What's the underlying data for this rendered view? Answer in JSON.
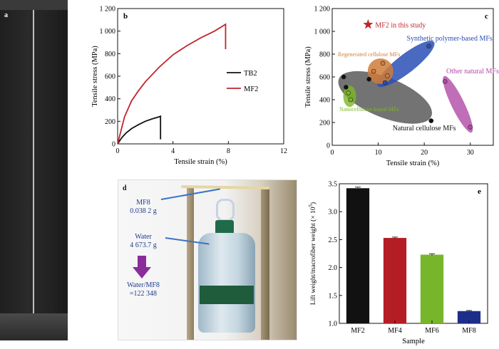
{
  "panel_a": {
    "letter": "a"
  },
  "panel_d": {
    "letter": "d",
    "mf8_name": "MF8",
    "mf8_mass": "0.038 2 g",
    "water_name": "Water",
    "water_mass": "4 673.7  g",
    "ratio_line1": "Water/MF8",
    "ratio_line2": "=122 348"
  },
  "colors": {
    "red": "#c0252b",
    "black": "#111111",
    "blue": "#2a4fb5",
    "green": "#7cb726",
    "orange": "#cf7d3a",
    "purple": "#b24aa6",
    "gray": "#444444",
    "navy": "#1d2e8a"
  },
  "chart_data": [
    {
      "panel": "b",
      "type": "line",
      "xlabel": "Tensile strain (%)",
      "ylabel": "Tensile stress (MPa)",
      "xlim": [
        0,
        12
      ],
      "ylim": [
        0,
        1200
      ],
      "xticks": [
        "0",
        "4",
        "8",
        "12"
      ],
      "yticks": [
        "0",
        "200",
        "400",
        "600",
        "800",
        "1 000",
        "1 200"
      ],
      "legend": "right",
      "series": [
        {
          "name": "TB2",
          "color": "#111111",
          "x": [
            0,
            0.3,
            0.6,
            1.0,
            1.5,
            2.0,
            2.5,
            3.0,
            3.1,
            3.1
          ],
          "y": [
            0,
            55,
            95,
            135,
            170,
            200,
            222,
            240,
            245,
            40
          ]
        },
        {
          "name": "MF2",
          "color": "#c0252b",
          "x": [
            0,
            0.5,
            1.0,
            1.5,
            2.0,
            3.0,
            4.0,
            5.0,
            6.0,
            7.0,
            7.8,
            7.8
          ],
          "y": [
            0,
            240,
            380,
            470,
            550,
            680,
            790,
            870,
            940,
            1000,
            1060,
            840
          ]
        }
      ]
    },
    {
      "panel": "c",
      "type": "scatter",
      "xlabel": "Tensile strain (%)",
      "ylabel": "Tensile stress (MPa)",
      "xlim": [
        0,
        35
      ],
      "ylim": [
        0,
        1200
      ],
      "xticks": [
        "0",
        "10",
        "20",
        "30"
      ],
      "yticks": [
        "0",
        "200",
        "400",
        "600",
        "800",
        "1 000",
        "1 200"
      ],
      "series": [
        {
          "name": "MF2 in this study",
          "color": "#c0252b",
          "x": [
            7.8
          ],
          "y": [
            1060
          ]
        },
        {
          "name": "Synthetic polymer-based MFs",
          "color": "#2a4fb5",
          "x": [
            11.5,
            21
          ],
          "y": [
            550,
            870
          ]
        },
        {
          "name": "Regenerated cellulose MFs",
          "color": "#cf7d3a",
          "x": [
            9,
            12,
            11
          ],
          "y": [
            650,
            610,
            720
          ]
        },
        {
          "name": "Other natural MFs",
          "color": "#b24aa6",
          "x": [
            24.5,
            30
          ],
          "y": [
            560,
            160
          ]
        },
        {
          "name": "Nanocellulose-based MFs",
          "color": "#7cb726",
          "x": [
            3.5,
            4
          ],
          "y": [
            460,
            400
          ]
        },
        {
          "name": "Natural cellulose MFs",
          "color": "#444444",
          "x": [
            2.5,
            8,
            21.5,
            3
          ],
          "y": [
            600,
            580,
            215,
            510
          ]
        }
      ]
    },
    {
      "panel": "e",
      "type": "bar",
      "xlabel": "Sample",
      "ylabel": "Lift weight/macrofiber weight (× 10",
      "ylabel_sup": "5",
      "ylabel_close": ")",
      "categories": [
        "MF2",
        "MF4",
        "MF6",
        "MF8"
      ],
      "values": [
        3.42,
        2.53,
        2.23,
        1.22
      ],
      "errors": [
        0.02,
        0.015,
        0.015,
        0.01
      ],
      "colors": [
        "#111111",
        "#b51d24",
        "#77b52a",
        "#1d2e8a"
      ],
      "ylim": [
        1.0,
        3.5
      ],
      "yticks": [
        "1.0",
        "1.5",
        "2.0",
        "2.5",
        "3.0",
        "3.5"
      ]
    }
  ]
}
